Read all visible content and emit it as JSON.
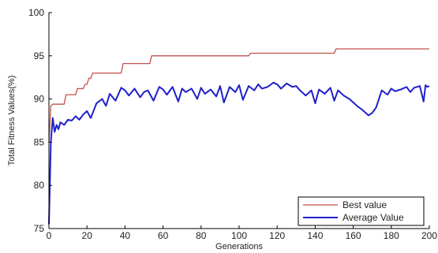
{
  "chart_data": {
    "type": "line",
    "xlabel": "Generations",
    "ylabel": "Total Fitness Values(%)",
    "xlim": [
      0,
      200
    ],
    "ylim": [
      75,
      100
    ],
    "xticks": [
      0,
      20,
      40,
      60,
      80,
      100,
      120,
      140,
      160,
      180,
      200
    ],
    "yticks": [
      75,
      80,
      85,
      90,
      95,
      100
    ],
    "grid": false,
    "legend_position": "bottom-right",
    "series": [
      {
        "name": "Best value",
        "color": "#c0504d",
        "x": [
          0,
          1,
          2,
          8,
          9,
          14,
          15,
          18,
          19,
          20,
          21,
          22,
          23,
          38,
          39,
          40,
          53,
          54,
          105,
          106,
          150,
          151,
          200
        ],
        "y": [
          85,
          89.2,
          89.4,
          89.4,
          90.5,
          90.5,
          91.2,
          91.2,
          91.7,
          91.7,
          92.4,
          92.4,
          93.0,
          93.0,
          94.1,
          94.1,
          94.1,
          95.0,
          95.0,
          95.3,
          95.3,
          95.8,
          95.8
        ]
      },
      {
        "name": "Average Value",
        "color": "#1f1fcc",
        "x": [
          0,
          1,
          2,
          3,
          4,
          5,
          6,
          8,
          10,
          12,
          14,
          16,
          18,
          20,
          22,
          25,
          28,
          30,
          32,
          35,
          38,
          40,
          42,
          45,
          48,
          50,
          52,
          55,
          58,
          60,
          62,
          65,
          68,
          70,
          72,
          75,
          78,
          80,
          82,
          85,
          88,
          90,
          92,
          95,
          98,
          100,
          102,
          105,
          108,
          110,
          112,
          115,
          118,
          120,
          122,
          125,
          128,
          130,
          132,
          135,
          138,
          140,
          142,
          145,
          148,
          150,
          152,
          155,
          158,
          160,
          162,
          165,
          168,
          170,
          172,
          175,
          178,
          180,
          182,
          185,
          188,
          190,
          192,
          195,
          197,
          198,
          199,
          200
        ],
        "y": [
          75.5,
          85.0,
          87.8,
          86.2,
          87.0,
          86.5,
          87.3,
          87.0,
          87.6,
          87.5,
          88.0,
          87.6,
          88.2,
          88.6,
          87.8,
          89.5,
          90.0,
          89.2,
          90.6,
          89.8,
          91.3,
          91.0,
          90.4,
          91.2,
          90.2,
          90.8,
          91.0,
          89.8,
          91.4,
          91.1,
          90.5,
          91.4,
          89.7,
          91.2,
          90.8,
          91.2,
          90.0,
          91.3,
          90.6,
          91.1,
          90.3,
          91.5,
          89.6,
          91.4,
          90.8,
          91.6,
          89.9,
          91.5,
          91.0,
          91.7,
          91.2,
          91.4,
          91.9,
          91.7,
          91.2,
          91.8,
          91.4,
          91.5,
          91.0,
          90.4,
          91.0,
          89.5,
          91.1,
          90.6,
          91.3,
          89.8,
          91.0,
          90.4,
          90.0,
          89.6,
          89.2,
          88.7,
          88.1,
          88.4,
          89.0,
          91.0,
          90.5,
          91.2,
          90.9,
          91.1,
          91.4,
          90.8,
          91.3,
          91.5,
          89.7,
          91.6,
          91.4,
          91.5
        ]
      }
    ]
  }
}
